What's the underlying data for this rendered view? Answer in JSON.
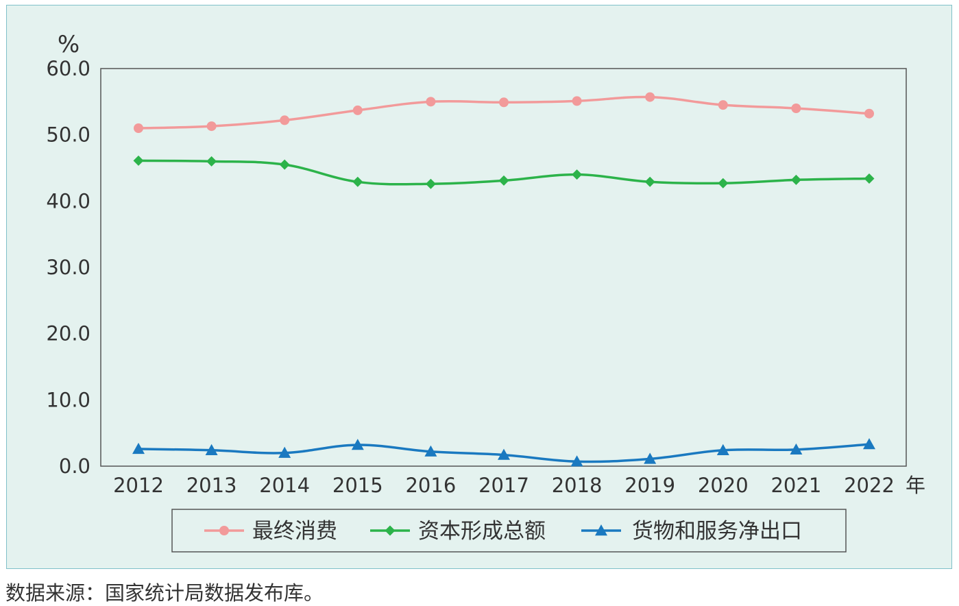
{
  "chart_data": {
    "type": "line",
    "y_unit": "%",
    "x_unit": "年",
    "categories": [
      "2012",
      "2013",
      "2014",
      "2015",
      "2016",
      "2017",
      "2018",
      "2019",
      "2020",
      "2021",
      "2022"
    ],
    "ylim": [
      0,
      60
    ],
    "yticks": [
      "0.0",
      "10.0",
      "20.0",
      "30.0",
      "40.0",
      "50.0",
      "60.0"
    ],
    "grid": false,
    "legend_position": "bottom",
    "series": [
      {
        "name": "最终消费",
        "color": "#f29a9a",
        "marker": "circle",
        "values": [
          51.0,
          51.3,
          52.2,
          53.7,
          55.0,
          54.9,
          55.1,
          55.7,
          54.5,
          54.0,
          53.2
        ]
      },
      {
        "name": "资本形成总额",
        "color": "#2cb34a",
        "marker": "diamond",
        "values": [
          46.1,
          46.0,
          45.5,
          42.9,
          42.6,
          43.1,
          44.0,
          42.9,
          42.7,
          43.2,
          43.4
        ]
      },
      {
        "name": "货物和服务净出口",
        "color": "#1a79c0",
        "marker": "triangle",
        "values": [
          2.6,
          2.4,
          2.0,
          3.2,
          2.2,
          1.7,
          0.7,
          1.1,
          2.4,
          2.5,
          3.3
        ]
      }
    ]
  },
  "source_note": "数据来源：国家统计局数据发布库。"
}
